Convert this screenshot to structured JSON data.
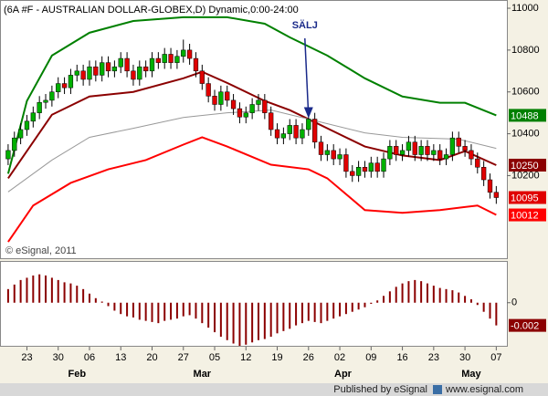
{
  "chart_data": [
    {
      "type": "candlestick",
      "title": "(6A #F - AUSTRALIAN DOLLAR-GLOBEX,D) Dynamic,0:00-24:00",
      "watermark": "© eSignal, 2011",
      "annotation": {
        "text": "SÄLJ",
        "x": 48,
        "y": 10470
      },
      "up_color": "#00b000",
      "down_color": "#e00000",
      "xlim": [
        -1.3,
        79.7
      ],
      "ylim": [
        9805,
        11035
      ],
      "yticks": [
        10200,
        10400,
        10600,
        10800,
        11000
      ],
      "open": [
        10280,
        10320,
        10380,
        10420,
        10460,
        10500,
        10550,
        10560,
        10600,
        10640,
        10620,
        10680,
        10700,
        10660,
        10720,
        10680,
        10740,
        10700,
        10720,
        10760,
        10700,
        10660,
        10720,
        10700,
        10760,
        10740,
        10780,
        10740,
        10770,
        10800,
        10760,
        10700,
        10640,
        10580,
        10540,
        10600,
        10560,
        10520,
        10480,
        10500,
        10540,
        10560,
        10500,
        10420,
        10380,
        10400,
        10440,
        10380,
        10420,
        10470,
        10360,
        10300,
        10320,
        10280,
        10300,
        10220,
        10200,
        10240,
        10220,
        10260,
        10220,
        10280,
        10340,
        10300,
        10320,
        10360,
        10300,
        10340,
        10300,
        10320,
        10280,
        10300,
        10380,
        10340,
        10320,
        10280,
        10240,
        10180,
        10120
      ],
      "high": [
        10350,
        10410,
        10450,
        10490,
        10530,
        10580,
        10590,
        10630,
        10670,
        10670,
        10710,
        10730,
        10730,
        10750,
        10750,
        10770,
        10770,
        10750,
        10790,
        10790,
        10730,
        10750,
        10750,
        10790,
        10790,
        10810,
        10810,
        10800,
        10850,
        10830,
        10790,
        10730,
        10670,
        10610,
        10630,
        10630,
        10590,
        10550,
        10530,
        10570,
        10590,
        10590,
        10530,
        10450,
        10430,
        10470,
        10470,
        10450,
        10500,
        10500,
        10390,
        10350,
        10350,
        10330,
        10330,
        10250,
        10270,
        10270,
        10290,
        10290,
        10310,
        10370,
        10370,
        10350,
        10390,
        10390,
        10370,
        10370,
        10350,
        10350,
        10330,
        10410,
        10410,
        10370,
        10350,
        10310,
        10270,
        10210,
        10150
      ],
      "low": [
        10250,
        10290,
        10350,
        10390,
        10430,
        10470,
        10520,
        10530,
        10570,
        10590,
        10590,
        10650,
        10630,
        10630,
        10650,
        10650,
        10670,
        10670,
        10690,
        10670,
        10630,
        10630,
        10670,
        10670,
        10710,
        10710,
        10710,
        10710,
        10740,
        10730,
        10670,
        10610,
        10550,
        10510,
        10510,
        10530,
        10490,
        10450,
        10450,
        10470,
        10510,
        10470,
        10390,
        10350,
        10350,
        10370,
        10350,
        10350,
        10390,
        10330,
        10270,
        10270,
        10250,
        10250,
        10190,
        10170,
        10170,
        10190,
        10190,
        10190,
        10190,
        10250,
        10270,
        10270,
        10290,
        10270,
        10270,
        10270,
        10270,
        10250,
        10250,
        10270,
        10310,
        10290,
        10250,
        10210,
        10150,
        10090,
        10065
      ],
      "close": [
        10320,
        10380,
        10420,
        10460,
        10500,
        10550,
        10560,
        10600,
        10640,
        10620,
        10680,
        10700,
        10660,
        10720,
        10680,
        10740,
        10700,
        10720,
        10760,
        10700,
        10660,
        10720,
        10700,
        10760,
        10740,
        10780,
        10740,
        10770,
        10800,
        10760,
        10700,
        10640,
        10580,
        10540,
        10600,
        10560,
        10520,
        10480,
        10500,
        10540,
        10560,
        10500,
        10420,
        10380,
        10400,
        10440,
        10380,
        10420,
        10470,
        10360,
        10300,
        10320,
        10280,
        10300,
        10220,
        10200,
        10240,
        10220,
        10260,
        10220,
        10280,
        10340,
        10300,
        10320,
        10360,
        10300,
        10340,
        10300,
        10320,
        10280,
        10300,
        10380,
        10340,
        10320,
        10280,
        10240,
        10180,
        10120,
        10095
      ],
      "series": [
        {
          "name": "Upper Band",
          "color": "#008000",
          "x": [
            0,
            3,
            7,
            13,
            20,
            28,
            35,
            41,
            45,
            51,
            57,
            63,
            69,
            73,
            78
          ],
          "values": [
            10209,
            10557,
            10774,
            10883,
            10939,
            10957,
            10957,
            10926,
            10861,
            10774,
            10665,
            10578,
            10548,
            10548,
            10488
          ]
        },
        {
          "name": "Moving Average",
          "color": "#8b0000",
          "x": [
            0,
            3,
            7,
            13,
            20,
            28,
            31,
            35,
            41,
            45,
            48,
            51,
            57,
            63,
            69,
            73,
            78
          ],
          "values": [
            10187,
            10317,
            10491,
            10578,
            10600,
            10665,
            10696,
            10643,
            10557,
            10513,
            10470,
            10426,
            10339,
            10296,
            10274,
            10317,
            10250
          ]
        },
        {
          "name": "Basis",
          "color": "#999999",
          "x": [
            0,
            7,
            13,
            20,
            28,
            35,
            42,
            48,
            57,
            63,
            72,
            78
          ],
          "values": [
            10122,
            10274,
            10383,
            10426,
            10478,
            10500,
            10513,
            10470,
            10404,
            10383,
            10374,
            10330
          ]
        },
        {
          "name": "Lower Band",
          "color": "#ff0000",
          "x": [
            0,
            4,
            10,
            16,
            22,
            28,
            31,
            35,
            42,
            48,
            51,
            57,
            63,
            69,
            75,
            78
          ],
          "values": [
            9883,
            10057,
            10165,
            10230,
            10274,
            10348,
            10383,
            10339,
            10252,
            10230,
            10187,
            10035,
            10022,
            10035,
            10057,
            10012
          ]
        }
      ]
    },
    {
      "type": "bar",
      "color": "#8b0000",
      "xlim": [
        -1.3,
        79.7
      ],
      "ylim": [
        -0.0038,
        0.0036
      ],
      "yticks": [
        0
      ],
      "values": [
        0.0012,
        0.0016,
        0.002,
        0.0022,
        0.0024,
        0.0025,
        0.0024,
        0.0022,
        0.002,
        0.0018,
        0.0017,
        0.0015,
        0.0012,
        0.0008,
        0.0004,
        0.0001,
        -0.0003,
        -0.0007,
        -0.001,
        -0.0012,
        -0.0013,
        -0.0015,
        -0.0016,
        -0.0017,
        -0.0018,
        -0.0016,
        -0.0015,
        -0.0014,
        -0.0012,
        -0.0011,
        -0.0014,
        -0.0018,
        -0.0022,
        -0.0026,
        -0.003,
        -0.0033,
        -0.0036,
        -0.0038,
        -0.0037,
        -0.0035,
        -0.0033,
        -0.0032,
        -0.003,
        -0.0027,
        -0.0025,
        -0.0023,
        -0.002,
        -0.0018,
        -0.0016,
        -0.0017,
        -0.0018,
        -0.0016,
        -0.0014,
        -0.0012,
        -0.001,
        -0.0008,
        -0.0006,
        -0.0004,
        -0.0001,
        0.0002,
        0.0006,
        0.001,
        0.0014,
        0.0017,
        0.0019,
        0.002,
        0.0019,
        0.0017,
        0.0015,
        0.0013,
        0.0012,
        0.0011,
        0.0009,
        0.0006,
        0.0003,
        -0.0002,
        -0.0008,
        -0.0014,
        -0.002
      ],
      "xticks": [
        {
          "value": 3,
          "label": "23"
        },
        {
          "value": 8,
          "label": "30"
        },
        {
          "value": 13,
          "label": "06"
        },
        {
          "value": 18,
          "label": "13"
        },
        {
          "value": 23,
          "label": "20"
        },
        {
          "value": 28,
          "label": "27"
        },
        {
          "value": 33,
          "label": "05"
        },
        {
          "value": 38,
          "label": "12"
        },
        {
          "value": 43,
          "label": "19"
        },
        {
          "value": 48,
          "label": "26"
        },
        {
          "value": 53,
          "label": "02"
        },
        {
          "value": 58,
          "label": "09"
        },
        {
          "value": 63,
          "label": "16"
        },
        {
          "value": 68,
          "label": "23"
        },
        {
          "value": 73,
          "label": "30"
        },
        {
          "value": 78,
          "label": "07"
        }
      ],
      "months": [
        {
          "value": 11,
          "label": "Feb"
        },
        {
          "value": 31,
          "label": "Mar"
        },
        {
          "value": 53.5,
          "label": "Apr"
        },
        {
          "value": 74,
          "label": "May"
        }
      ]
    }
  ],
  "footer": {
    "published": "Published by eSignal",
    "site": "www.esignal.com"
  }
}
